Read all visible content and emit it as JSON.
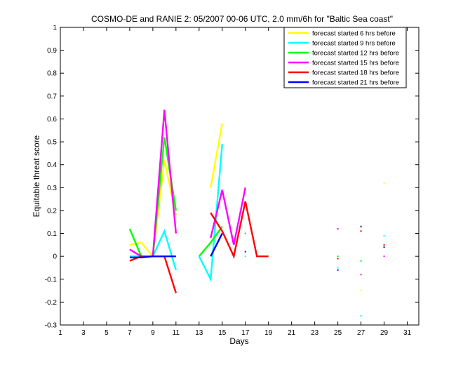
{
  "chart_data": {
    "type": "line",
    "title": "COSMO-DE and RANIE 2: 05/2007 00-06 UTC, 2.0 mm/6h for \"Baltic Sea coast\"",
    "xlabel": "Days",
    "ylabel": "Equitable threat score",
    "xlim": [
      1,
      32
    ],
    "ylim": [
      -0.3,
      1
    ],
    "xticks": [
      1,
      3,
      5,
      7,
      9,
      11,
      13,
      15,
      17,
      19,
      21,
      23,
      25,
      27,
      29,
      31
    ],
    "yticks": [
      -0.3,
      -0.2,
      -0.1,
      0,
      0.1,
      0.2,
      0.3,
      0.4,
      0.5,
      0.6,
      0.7,
      0.8,
      0.9,
      1
    ],
    "x": [
      7,
      8,
      9,
      10,
      11,
      12,
      13,
      14,
      15,
      16,
      17,
      18,
      19,
      20,
      21,
      22,
      23,
      24,
      25,
      26,
      27,
      28,
      29
    ],
    "grid": false,
    "legend_position": "top-right",
    "series": [
      {
        "name": "forecast started 6 hrs before",
        "color": "#ffff00",
        "values": [
          0.05,
          0.06,
          0.0,
          0.42,
          0.18,
          null,
          null,
          0.3,
          0.58,
          null,
          null,
          null,
          null,
          null,
          null,
          null,
          null,
          null,
          0.0,
          null,
          -0.15,
          null,
          0.32
        ]
      },
      {
        "name": "forecast started 9 hrs before",
        "color": "#00ffff",
        "values": [
          0.0,
          0.0,
          0.0,
          0.11,
          -0.06,
          null,
          0.0,
          -0.1,
          0.49,
          null,
          0.0,
          null,
          null,
          null,
          null,
          null,
          null,
          null,
          -0.05,
          null,
          -0.26,
          null,
          0.09
        ]
      },
      {
        "name": "forecast started 12 hrs before",
        "color": "#00ff00",
        "values": [
          0.12,
          0.0,
          0.0,
          0.52,
          0.2,
          null,
          0.0,
          0.06,
          0.13,
          null,
          0.1,
          null,
          null,
          null,
          null,
          null,
          null,
          null,
          0.0,
          null,
          -0.02,
          null,
          null
        ]
      },
      {
        "name": "forecast started 15 hrs before",
        "color": "#ff00ff",
        "values": [
          0.03,
          0.0,
          0.0,
          0.64,
          0.1,
          null,
          null,
          0.08,
          0.29,
          0.05,
          0.3,
          null,
          null,
          null,
          null,
          null,
          null,
          null,
          0.12,
          null,
          -0.08,
          null,
          0.0
        ]
      },
      {
        "name": "forecast started 18 hrs before",
        "color": "#ff0000",
        "values": [
          -0.02,
          0.0,
          0.0,
          0.0,
          -0.16,
          null,
          null,
          0.19,
          0.11,
          0.0,
          0.24,
          0.0,
          0.0,
          null,
          null,
          null,
          null,
          null,
          -0.01,
          null,
          0.11,
          null,
          0.05
        ]
      },
      {
        "name": "forecast started 21 hrs before",
        "color": "#0000ff",
        "values": [
          -0.005,
          -0.005,
          0.0,
          0.0,
          0.0,
          null,
          null,
          0.0,
          0.1,
          null,
          0.02,
          null,
          null,
          null,
          null,
          null,
          null,
          null,
          -0.06,
          null,
          0.13,
          null,
          0.04
        ]
      }
    ]
  }
}
